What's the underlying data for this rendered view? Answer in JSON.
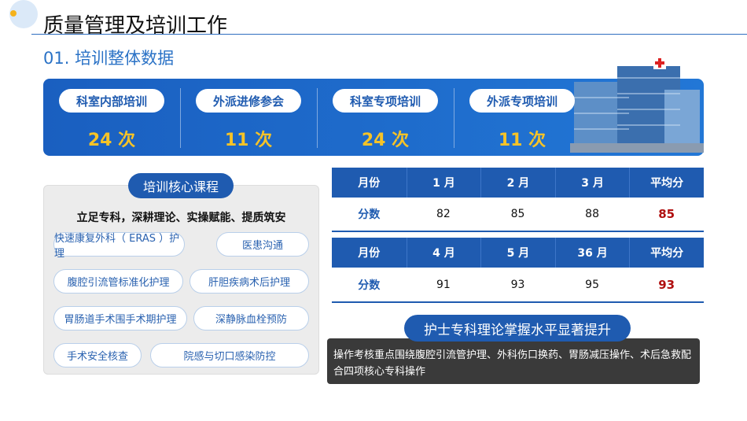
{
  "header": {
    "title": "质量管理及培训工作"
  },
  "section": {
    "title": "01. 培训整体数据"
  },
  "stats": [
    {
      "label": "科室内部培训",
      "value": "24 次"
    },
    {
      "label": "外派进修参会",
      "value": "11 次"
    },
    {
      "label": "科室专项培训",
      "value": "24 次"
    },
    {
      "label": "外派专项培训",
      "value": "11 次"
    }
  ],
  "courses": {
    "title": "培训核心课程",
    "motto": "立足专科，深耕理论、实操赋能、提质筑安",
    "tags": [
      "快速康复外科（ ERAS ）护理",
      "医患沟通",
      "腹腔引流管标准化护理",
      "肝胆疾病术后护理",
      "胃肠道手术围手术期护理",
      "深静脉血栓预防",
      "手术安全核查",
      "院感与切口感染防控"
    ]
  },
  "table": {
    "rows": [
      [
        "月份",
        "1 月",
        "2 月",
        "3 月",
        "平均分"
      ],
      [
        "分数",
        "82",
        "85",
        "88",
        "85"
      ],
      [
        "月份",
        "4 月",
        "5 月",
        "36 月",
        "平均分"
      ],
      [
        "分数",
        "91",
        "93",
        "95",
        "93"
      ]
    ]
  },
  "summary": {
    "title": "护士专科理论掌握水平显著提升",
    "text": "操作考核重点围绕腹腔引流管护理、外科伤口换药、胃肠减压操作、术后急救配合四项核心专科操作"
  }
}
